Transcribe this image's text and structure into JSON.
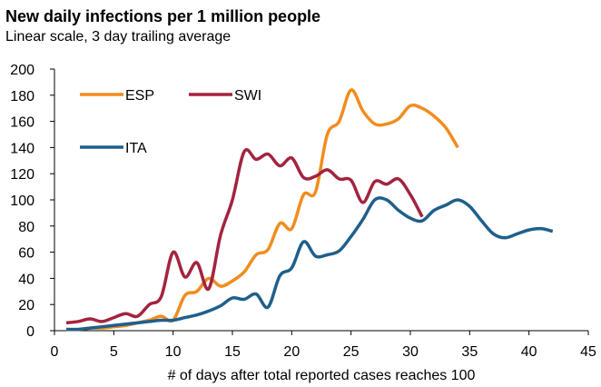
{
  "chart_data": {
    "type": "line",
    "title": "New daily infections per 1 million people",
    "subtitle": "Linear scale, 3 day trailing average",
    "x_label": "# of days after total reported cases reaches 100",
    "x": [
      1,
      2,
      3,
      4,
      5,
      6,
      7,
      8,
      9,
      10,
      11,
      12,
      13,
      14,
      15,
      16,
      17,
      18,
      19,
      20,
      21,
      22,
      23,
      24,
      25,
      26,
      27,
      28,
      29,
      30,
      31,
      32,
      33,
      34,
      35,
      36,
      37,
      38,
      39,
      40,
      41,
      42
    ],
    "series": [
      {
        "name": "ESP",
        "color": "#f28c1e",
        "values": [
          1,
          1,
          2,
          2,
          3,
          4,
          6,
          8,
          11,
          8,
          27,
          30,
          40,
          34,
          38,
          45,
          58,
          62,
          82,
          78,
          104,
          106,
          150,
          160,
          184,
          168,
          158,
          158,
          162,
          172,
          170,
          164,
          155,
          140,
          null,
          null,
          null,
          null,
          null,
          null,
          null,
          null
        ]
      },
      {
        "name": "SWI",
        "color": "#a3243f",
        "values": [
          6,
          7,
          9,
          7,
          10,
          13,
          11,
          20,
          26,
          60,
          41,
          52,
          32,
          73,
          100,
          137,
          131,
          135,
          126,
          132,
          117,
          118,
          123,
          116,
          115,
          98,
          114,
          112,
          116,
          104,
          87,
          null,
          null,
          null,
          null,
          null,
          null,
          null,
          null,
          null,
          null,
          null
        ]
      },
      {
        "name": "ITA",
        "color": "#1f5f8b",
        "values": [
          1,
          1,
          2,
          3,
          4,
          5,
          6,
          7,
          8,
          8,
          10,
          12,
          15,
          19,
          25,
          24,
          28,
          18,
          42,
          48,
          68,
          57,
          58,
          61,
          72,
          85,
          100,
          100,
          92,
          86,
          84,
          92,
          96,
          100,
          95,
          84,
          74,
          71,
          74,
          77,
          78,
          76
        ]
      }
    ],
    "xlim": [
      0,
      45
    ],
    "xticks": [
      0,
      5,
      10,
      15,
      20,
      25,
      30,
      35,
      40,
      45
    ],
    "ylim": [
      0,
      200
    ],
    "yticks": [
      0,
      20,
      40,
      60,
      80,
      100,
      120,
      140,
      160,
      180,
      200
    ],
    "grid": false
  }
}
